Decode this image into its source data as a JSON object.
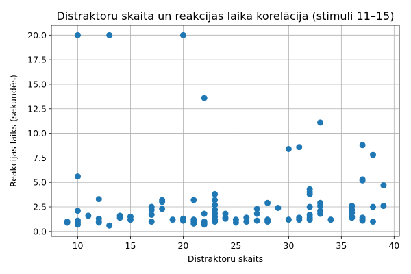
{
  "chart_data": {
    "type": "scatter",
    "title": "Distraktoru skaita un reakcijas laika korelācija (stimuli 11–15)",
    "xlabel": "Distraktoru skaits",
    "ylabel": "Reakcijas laiks (sekundēs)",
    "xlim": [
      7.5,
      40.5
    ],
    "ylim": [
      -0.5,
      21.0
    ],
    "xticks": [
      10,
      15,
      20,
      25,
      30,
      35,
      40
    ],
    "yticks": [
      0.0,
      2.5,
      5.0,
      7.5,
      10.0,
      12.5,
      15.0,
      17.5,
      20.0
    ],
    "xtick_labels": [
      "10",
      "15",
      "20",
      "25",
      "30",
      "35",
      "40"
    ],
    "ytick_labels": [
      "0.0",
      "2.5",
      "5.0",
      "7.5",
      "10.0",
      "12.5",
      "15.0",
      "17.5",
      "20.0"
    ],
    "grid": true,
    "marker_color": "#1f77b4",
    "points": [
      [
        9,
        0.9
      ],
      [
        9,
        1.0
      ],
      [
        10,
        20.0
      ],
      [
        10,
        5.6
      ],
      [
        10,
        2.1
      ],
      [
        10,
        1.1
      ],
      [
        10,
        0.9
      ],
      [
        10,
        0.7
      ],
      [
        11,
        1.6
      ],
      [
        12,
        3.3
      ],
      [
        12,
        1.3
      ],
      [
        12,
        1.0
      ],
      [
        12,
        0.9
      ],
      [
        13,
        20.0
      ],
      [
        13,
        0.6
      ],
      [
        14,
        1.6
      ],
      [
        14,
        1.4
      ],
      [
        15,
        1.5
      ],
      [
        15,
        1.2
      ],
      [
        17,
        2.5
      ],
      [
        17,
        2.2
      ],
      [
        17,
        1.7
      ],
      [
        17,
        1.0
      ],
      [
        18,
        3.2
      ],
      [
        18,
        3.0
      ],
      [
        18,
        2.3
      ],
      [
        19,
        1.2
      ],
      [
        20,
        20.0
      ],
      [
        20,
        1.3
      ],
      [
        20,
        1.1
      ],
      [
        21,
        3.2
      ],
      [
        21,
        1.2
      ],
      [
        21,
        1.0
      ],
      [
        21,
        0.8
      ],
      [
        22,
        13.6
      ],
      [
        22,
        1.8
      ],
      [
        22,
        1.0
      ],
      [
        22,
        0.8
      ],
      [
        22,
        0.7
      ],
      [
        23,
        3.8
      ],
      [
        23,
        3.2
      ],
      [
        23,
        2.7
      ],
      [
        23,
        2.2
      ],
      [
        23,
        1.8
      ],
      [
        23,
        1.5
      ],
      [
        23,
        1.2
      ],
      [
        23,
        1.0
      ],
      [
        24,
        1.8
      ],
      [
        24,
        1.4
      ],
      [
        24,
        1.3
      ],
      [
        25,
        1.2
      ],
      [
        25,
        0.9
      ],
      [
        26,
        1.4
      ],
      [
        26,
        1.0
      ],
      [
        27,
        2.3
      ],
      [
        27,
        1.8
      ],
      [
        27,
        1.1
      ],
      [
        28,
        2.9
      ],
      [
        28,
        1.2
      ],
      [
        28,
        1.0
      ],
      [
        29,
        2.4
      ],
      [
        30,
        8.4
      ],
      [
        30,
        1.2
      ],
      [
        31,
        8.6
      ],
      [
        31,
        1.4
      ],
      [
        31,
        1.2
      ],
      [
        32,
        4.3
      ],
      [
        32,
        4.0
      ],
      [
        32,
        3.8
      ],
      [
        32,
        2.5
      ],
      [
        32,
        1.7
      ],
      [
        32,
        1.4
      ],
      [
        32,
        1.2
      ],
      [
        33,
        11.1
      ],
      [
        33,
        2.9
      ],
      [
        33,
        2.6
      ],
      [
        33,
        2.1
      ],
      [
        33,
        1.8
      ],
      [
        34,
        1.2
      ],
      [
        36,
        2.6
      ],
      [
        36,
        2.2
      ],
      [
        36,
        1.9
      ],
      [
        36,
        1.5
      ],
      [
        36,
        1.4
      ],
      [
        37,
        8.8
      ],
      [
        37,
        5.3
      ],
      [
        37,
        5.2
      ],
      [
        37,
        1.4
      ],
      [
        37,
        1.2
      ],
      [
        37,
        1.1
      ],
      [
        38,
        7.8
      ],
      [
        38,
        2.5
      ],
      [
        38,
        1.0
      ],
      [
        39,
        4.7
      ],
      [
        39,
        2.6
      ]
    ]
  }
}
